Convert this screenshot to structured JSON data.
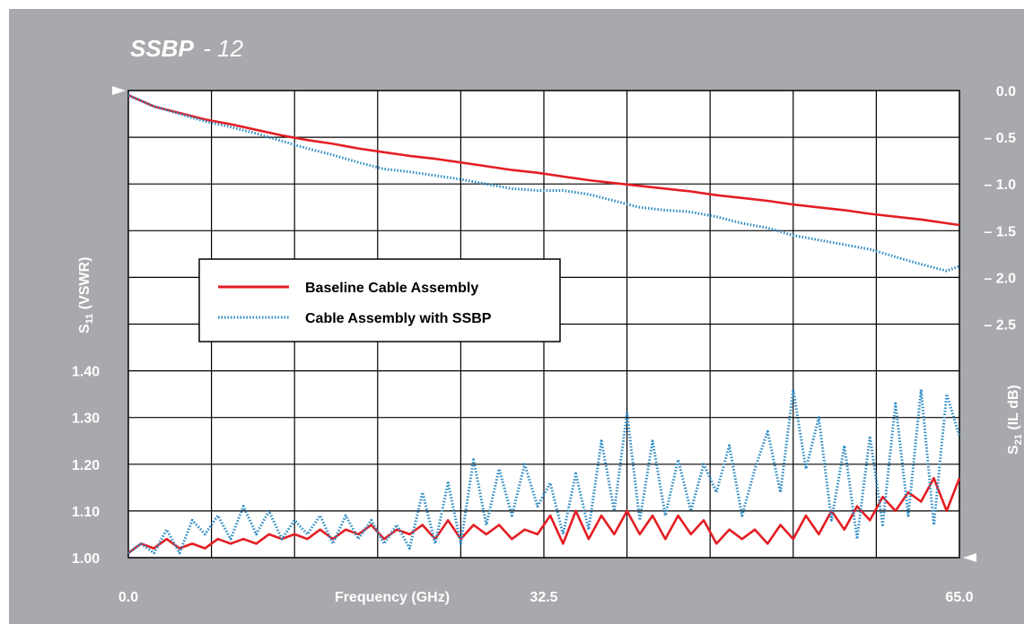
{
  "title": {
    "main": "SSBP",
    "suffix": "- 12"
  },
  "chart_data": {
    "type": "line",
    "x_axis": {
      "label": "Frequency (GHz)",
      "range": [
        0,
        65
      ],
      "tick_labels": [
        {
          "value": 0,
          "label": "0.0"
        },
        {
          "value": 32.5,
          "label": "32.5"
        },
        {
          "value": 65,
          "label": "65.0"
        }
      ]
    },
    "y_left": {
      "label_main": "S",
      "label_sub": "11",
      "label_rest": " (VSWR)",
      "range": [
        1.0,
        1.4
      ],
      "ticks": [
        {
          "value": 1.0,
          "label": "1.00"
        },
        {
          "value": 1.1,
          "label": "1.10"
        },
        {
          "value": 1.2,
          "label": "1.20"
        },
        {
          "value": 1.3,
          "label": "1.30"
        },
        {
          "value": 1.4,
          "label": "1.40"
        }
      ]
    },
    "y_right": {
      "label_main": "S",
      "label_sub": "21",
      "label_rest": " (IL dB)",
      "range": [
        0.0,
        -2.5
      ],
      "ticks": [
        {
          "value": 0.0,
          "label": "0.0"
        },
        {
          "value": -0.5,
          "label": "– 0.5"
        },
        {
          "value": -1.0,
          "label": "– 1.0"
        },
        {
          "value": -1.5,
          "label": "– 1.5"
        },
        {
          "value": -2.0,
          "label": "– 2.0"
        },
        {
          "value": -2.5,
          "label": "– 2.5"
        }
      ]
    },
    "grid": true,
    "legend": {
      "position": "center-left"
    },
    "series": [
      {
        "name": "Baseline Cable Assembly",
        "color": "#e31e24",
        "style": "solid",
        "axis": "right",
        "x": [
          0,
          2,
          4,
          6,
          8,
          10,
          12,
          14,
          16,
          18,
          20,
          22,
          24,
          26,
          28,
          30,
          32,
          34,
          36,
          38,
          40,
          42,
          44,
          46,
          48,
          50,
          52,
          54,
          56,
          58,
          60,
          62,
          64,
          65
        ],
        "y": [
          -0.05,
          -0.17,
          -0.24,
          -0.31,
          -0.36,
          -0.42,
          -0.48,
          -0.53,
          -0.57,
          -0.62,
          -0.66,
          -0.7,
          -0.73,
          -0.77,
          -0.81,
          -0.85,
          -0.88,
          -0.92,
          -0.96,
          -0.99,
          -1.02,
          -1.05,
          -1.08,
          -1.12,
          -1.15,
          -1.18,
          -1.22,
          -1.25,
          -1.28,
          -1.32,
          -1.35,
          -1.38,
          -1.42,
          -1.44
        ]
      },
      {
        "name": "Baseline Cable Assembly",
        "color": "#e31e24",
        "style": "solid",
        "axis": "left",
        "x": [
          0,
          1,
          2,
          3,
          4,
          5,
          6,
          7,
          8,
          9,
          10,
          11,
          12,
          13,
          14,
          15,
          16,
          17,
          18,
          19,
          20,
          21,
          22,
          23,
          24,
          25,
          26,
          27,
          28,
          29,
          30,
          31,
          32,
          33,
          34,
          35,
          36,
          37,
          38,
          39,
          40,
          41,
          42,
          43,
          44,
          45,
          46,
          47,
          48,
          49,
          50,
          51,
          52,
          53,
          54,
          55,
          56,
          57,
          58,
          59,
          60,
          61,
          62,
          63,
          64,
          65
        ],
        "y": [
          1.01,
          1.03,
          1.02,
          1.04,
          1.02,
          1.03,
          1.02,
          1.04,
          1.03,
          1.04,
          1.03,
          1.05,
          1.04,
          1.05,
          1.04,
          1.06,
          1.04,
          1.06,
          1.05,
          1.07,
          1.04,
          1.06,
          1.05,
          1.07,
          1.04,
          1.08,
          1.04,
          1.07,
          1.05,
          1.07,
          1.04,
          1.06,
          1.05,
          1.09,
          1.03,
          1.1,
          1.04,
          1.09,
          1.05,
          1.1,
          1.05,
          1.09,
          1.04,
          1.09,
          1.05,
          1.08,
          1.03,
          1.06,
          1.04,
          1.06,
          1.03,
          1.07,
          1.04,
          1.09,
          1.05,
          1.1,
          1.06,
          1.11,
          1.08,
          1.13,
          1.1,
          1.14,
          1.12,
          1.17,
          1.1,
          1.17
        ]
      },
      {
        "name": "Cable Assembly with SSBP",
        "color": "#2b8ac4",
        "style": "dotted",
        "axis": "right",
        "x": [
          0,
          2,
          4,
          6,
          8,
          10,
          12,
          14,
          16,
          18,
          20,
          22,
          24,
          26,
          28,
          30,
          32,
          34,
          36,
          38,
          40,
          42,
          44,
          46,
          48,
          50,
          52,
          54,
          56,
          58,
          60,
          62,
          64,
          65
        ],
        "y": [
          -0.05,
          -0.17,
          -0.25,
          -0.33,
          -0.39,
          -0.46,
          -0.54,
          -0.62,
          -0.69,
          -0.77,
          -0.84,
          -0.87,
          -0.91,
          -0.95,
          -1.0,
          -1.05,
          -1.07,
          -1.07,
          -1.11,
          -1.18,
          -1.25,
          -1.28,
          -1.3,
          -1.35,
          -1.42,
          -1.47,
          -1.55,
          -1.6,
          -1.65,
          -1.7,
          -1.78,
          -1.86,
          -1.93,
          -1.88
        ]
      },
      {
        "name": "Cable Assembly with SSBP",
        "color": "#2b8ac4",
        "style": "dotted",
        "axis": "left",
        "x": [
          0,
          1,
          2,
          3,
          4,
          5,
          6,
          7,
          8,
          9,
          10,
          11,
          12,
          13,
          14,
          15,
          16,
          17,
          18,
          19,
          20,
          21,
          22,
          23,
          24,
          25,
          26,
          27,
          28,
          29,
          30,
          31,
          32,
          33,
          34,
          35,
          36,
          37,
          38,
          39,
          40,
          41,
          42,
          43,
          44,
          45,
          46,
          47,
          48,
          49,
          50,
          51,
          52,
          53,
          54,
          55,
          56,
          57,
          58,
          59,
          60,
          61,
          62,
          63,
          64,
          65
        ],
        "y": [
          1.01,
          1.03,
          1.01,
          1.06,
          1.01,
          1.08,
          1.05,
          1.09,
          1.04,
          1.11,
          1.05,
          1.1,
          1.04,
          1.08,
          1.05,
          1.09,
          1.03,
          1.09,
          1.04,
          1.08,
          1.03,
          1.07,
          1.02,
          1.14,
          1.03,
          1.16,
          1.03,
          1.21,
          1.07,
          1.19,
          1.09,
          1.2,
          1.11,
          1.16,
          1.05,
          1.18,
          1.06,
          1.25,
          1.1,
          1.31,
          1.08,
          1.25,
          1.09,
          1.21,
          1.1,
          1.2,
          1.14,
          1.24,
          1.09,
          1.19,
          1.27,
          1.14,
          1.36,
          1.19,
          1.3,
          1.08,
          1.24,
          1.04,
          1.26,
          1.07,
          1.33,
          1.09,
          1.36,
          1.07,
          1.35,
          1.26
        ]
      }
    ]
  }
}
